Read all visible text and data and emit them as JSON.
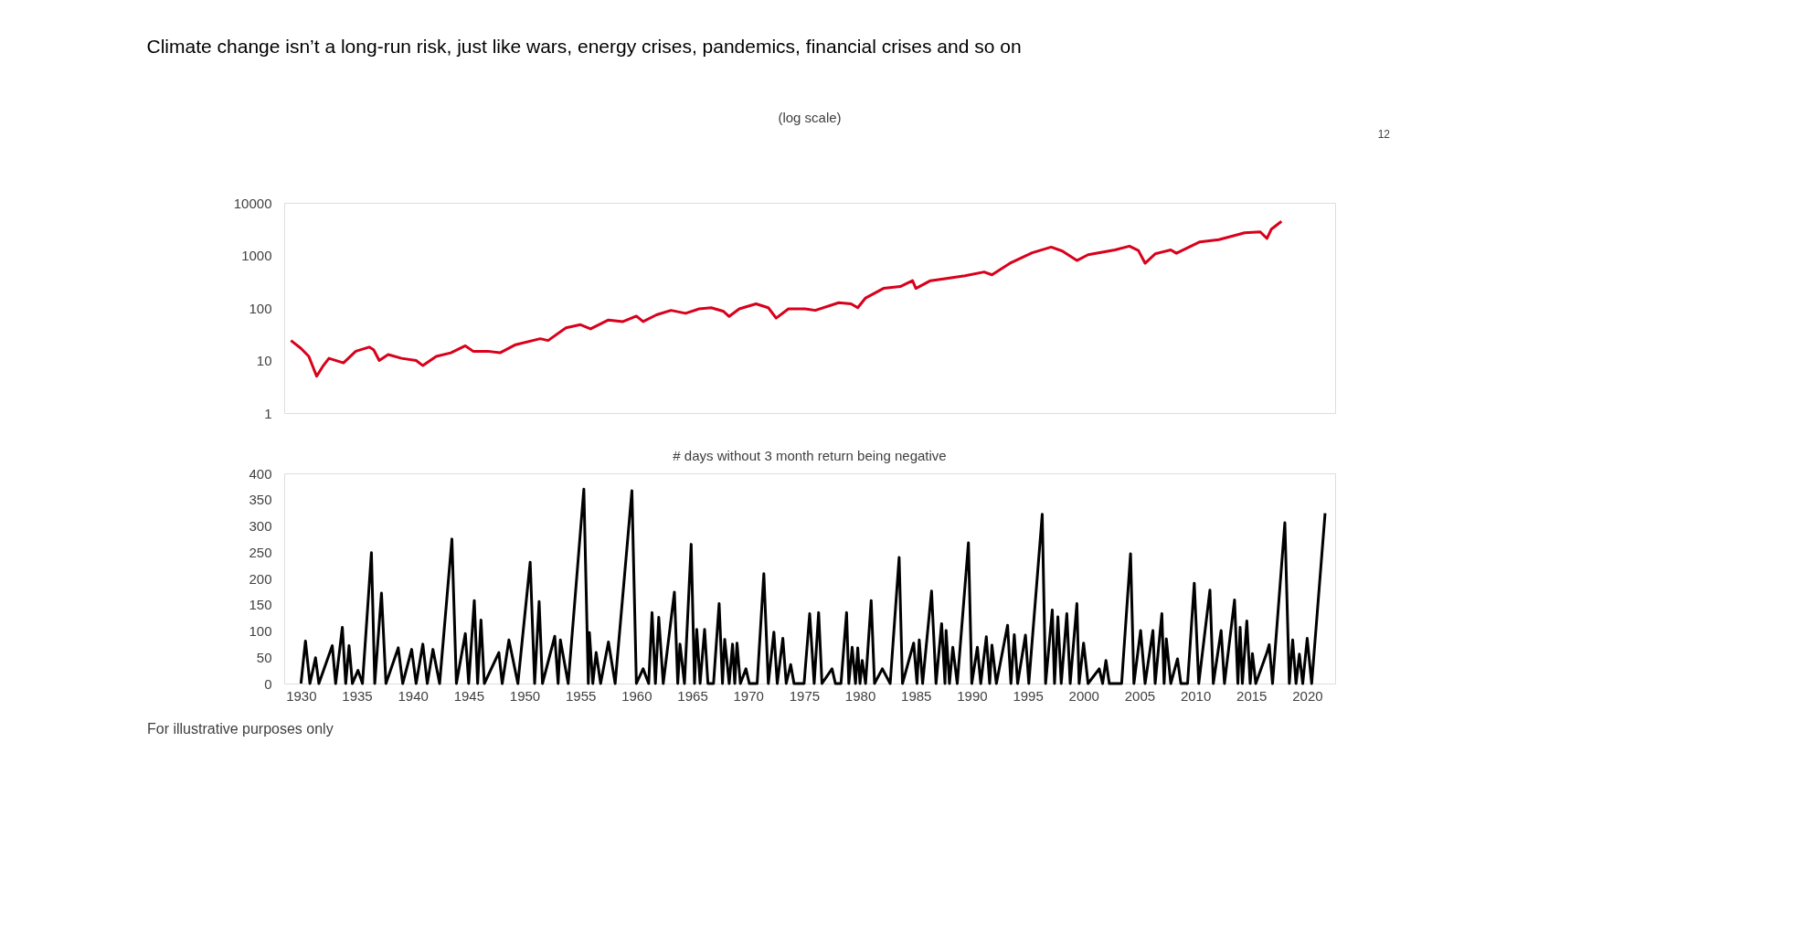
{
  "chart_data": [
    {
      "type": "line",
      "title": "Climate change isn’t a long-run risk, just like wars, energy crises, pandemics, financial crises and so on",
      "subtitle": "(log scale)",
      "annotations": [
        "12"
      ],
      "log": "y",
      "grid": false,
      "tick_labels": "y",
      "xlim": [
        1928.5,
        2022.5
      ],
      "ylim": [
        1,
        10000
      ],
      "yticks": [
        1,
        10,
        100,
        1000,
        10000
      ],
      "series": [
        {
          "color": "#d9001b",
          "x": [
            1929.1,
            1930.0,
            1930.7,
            1931.4,
            1932.0,
            1932.5,
            1933.8,
            1934.9,
            1936.1,
            1936.5,
            1937.0,
            1937.8,
            1939.0,
            1940.3,
            1940.9,
            1942.1,
            1943.4,
            1944.7,
            1945.4,
            1946.7,
            1947.8,
            1949.2,
            1951.4,
            1952.1,
            1953.7,
            1955.0,
            1955.9,
            1957.5,
            1958.8,
            1960.0,
            1960.6,
            1961.8,
            1963.1,
            1964.4,
            1965.6,
            1966.7,
            1967.8,
            1968.3,
            1969.2,
            1970.7,
            1971.8,
            1972.5,
            1973.6,
            1975.1,
            1976.0,
            1978.1,
            1979.2,
            1979.8,
            1980.5,
            1982.1,
            1983.6,
            1984.7,
            1985.0,
            1986.3,
            1987.6,
            1989.4,
            1991.1,
            1991.8,
            1993.4,
            1995.4,
            1997.1,
            1998.1,
            1999.4,
            2000.4,
            2002.8,
            2004.1,
            2004.9,
            2005.5,
            2006.4,
            2007.8,
            2008.3,
            2010.4,
            2012.1,
            2014.4,
            2015.8,
            2016.4,
            2016.8,
            2017.7
          ],
          "values": [
            24,
            17,
            12,
            5,
            8,
            11,
            9,
            15,
            18,
            16,
            10,
            13,
            11,
            10,
            8,
            12,
            14,
            19,
            15,
            15,
            14,
            20,
            26,
            24,
            42,
            48,
            40,
            59,
            55,
            70,
            55,
            74,
            90,
            79,
            96,
            101,
            86,
            69,
            96,
            120,
            101,
            64,
            96,
            96,
            90,
            126,
            120,
            101,
            155,
            236,
            256,
            330,
            236,
            330,
            360,
            411,
            484,
            427,
            707,
            1120,
            1440,
            1210,
            800,
            1030,
            1270,
            1500,
            1240,
            710,
            1070,
            1270,
            1100,
            1810,
            1995,
            2690,
            2800,
            2100,
            3170,
            4440
          ]
        }
      ]
    },
    {
      "type": "line",
      "title": "# days without 3 month return being negative",
      "annotations": [
        "For illustrative purposes only"
      ],
      "grid": false,
      "xlim": [
        1928.5,
        2022.5
      ],
      "xticks": [
        1930,
        1935,
        1940,
        1945,
        1950,
        1955,
        1960,
        1965,
        1970,
        1975,
        1980,
        1985,
        1990,
        1995,
        2000,
        2005,
        2010,
        2015,
        2020
      ],
      "ylim": [
        0,
        400
      ],
      "yticks": [
        0,
        50,
        100,
        150,
        200,
        250,
        300,
        350,
        400
      ],
      "series": [
        {
          "color": "#000000",
          "x": [
            1930.0,
            1930.4,
            1930.8,
            1931.3,
            1931.6,
            1932.8,
            1933.1,
            1933.7,
            1934.0,
            1934.3,
            1934.6,
            1935.1,
            1935.5,
            1936.3,
            1936.6,
            1937.2,
            1937.6,
            1938.7,
            1939.1,
            1939.9,
            1940.3,
            1940.9,
            1941.3,
            1941.8,
            1942.4,
            1943.5,
            1943.9,
            1944.7,
            1945.0,
            1945.5,
            1945.8,
            1946.1,
            1946.4,
            1947.7,
            1948.0,
            1948.6,
            1949.4,
            1950.5,
            1950.9,
            1951.3,
            1951.6,
            1952.7,
            1953.0,
            1953.2,
            1953.9,
            1955.3,
            1955.7,
            1955.8,
            1956.1,
            1956.4,
            1956.8,
            1957.5,
            1958.1,
            1959.6,
            1960.0,
            1960.6,
            1961.1,
            1961.4,
            1961.7,
            1962.0,
            1962.4,
            1963.4,
            1963.7,
            1963.9,
            1964.3,
            1964.9,
            1965.2,
            1965.4,
            1965.7,
            1966.1,
            1966.4,
            1966.9,
            1967.4,
            1967.7,
            1967.9,
            1968.3,
            1968.6,
            1968.8,
            1969.0,
            1969.3,
            1969.8,
            1970.1,
            1970.8,
            1971.4,
            1971.8,
            1972.3,
            1972.6,
            1973.1,
            1973.4,
            1973.8,
            1974.1,
            1975.0,
            1975.5,
            1975.9,
            1976.3,
            1976.6,
            1977.5,
            1977.8,
            1978.3,
            1978.8,
            1979.0,
            1979.3,
            1979.6,
            1979.8,
            1980.0,
            1980.2,
            1980.5,
            1981.0,
            1981.3,
            1982.0,
            1982.7,
            1983.5,
            1983.8,
            1984.8,
            1985.1,
            1985.3,
            1985.6,
            1986.4,
            1986.8,
            1987.3,
            1987.6,
            1987.7,
            1988.0,
            1988.3,
            1988.7,
            1989.7,
            1990.0,
            1990.5,
            1990.8,
            1991.3,
            1991.6,
            1991.8,
            1992.2,
            1993.2,
            1993.5,
            1993.8,
            1994.1,
            1994.8,
            1995.1,
            1996.3,
            1996.6,
            1997.2,
            1997.4,
            1997.7,
            1998.0,
            1998.5,
            1998.8,
            1999.4,
            1999.6,
            2000.0,
            2000.4,
            2001.4,
            2001.7,
            2002.0,
            2002.3,
            2003.4,
            2004.2,
            2004.5,
            2005.1,
            2005.5,
            2006.2,
            2006.4,
            2007.0,
            2007.2,
            2007.4,
            2007.8,
            2008.4,
            2008.7,
            2009.3,
            2009.9,
            2010.3,
            2011.3,
            2011.6,
            2012.3,
            2012.6,
            2013.5,
            2013.8,
            2014.0,
            2014.2,
            2014.6,
            2014.9,
            2015.1,
            2015.4,
            2016.4,
            2016.6,
            2016.9,
            2018.0,
            2018.4,
            2018.7,
            2019.0,
            2019.3,
            2019.6,
            2020.0,
            2020.4,
            2021.6
          ],
          "values": [
            0,
            81,
            0,
            49,
            0,
            72,
            0,
            107,
            0,
            72,
            0,
            25,
            0,
            249,
            0,
            172,
            0,
            68,
            0,
            65,
            0,
            75,
            0,
            65,
            0,
            275,
            0,
            95,
            0,
            158,
            0,
            121,
            0,
            59,
            0,
            83,
            0,
            231,
            0,
            156,
            0,
            90,
            0,
            83,
            0,
            370,
            0,
            97,
            0,
            59,
            0,
            79,
            0,
            367,
            0,
            28,
            0,
            135,
            0,
            126,
            0,
            174,
            0,
            75,
            0,
            265,
            0,
            103,
            0,
            103,
            0,
            0,
            152,
            0,
            84,
            0,
            75,
            0,
            77,
            0,
            28,
            0,
            0,
            209,
            0,
            98,
            0,
            86,
            0,
            36,
            0,
            0,
            133,
            0,
            135,
            0,
            28,
            0,
            0,
            135,
            0,
            69,
            0,
            68,
            0,
            44,
            0,
            158,
            0,
            28,
            0,
            240,
            0,
            77,
            0,
            83,
            0,
            176,
            0,
            114,
            0,
            101,
            0,
            69,
            0,
            268,
            0,
            69,
            0,
            89,
            0,
            73,
            0,
            111,
            0,
            93,
            0,
            92,
            0,
            322,
            0,
            140,
            0,
            127,
            0,
            133,
            0,
            152,
            0,
            77,
            0,
            28,
            0,
            44,
            0,
            0,
            247,
            0,
            101,
            0,
            101,
            0,
            133,
            0,
            85,
            0,
            47,
            0,
            0,
            191,
            0,
            178,
            0,
            101,
            0,
            159,
            0,
            107,
            0,
            119,
            0,
            57,
            0,
            59,
            74,
            0,
            306,
            0,
            83,
            0,
            56,
            0,
            86,
            0,
            324
          ]
        }
      ]
    }
  ]
}
